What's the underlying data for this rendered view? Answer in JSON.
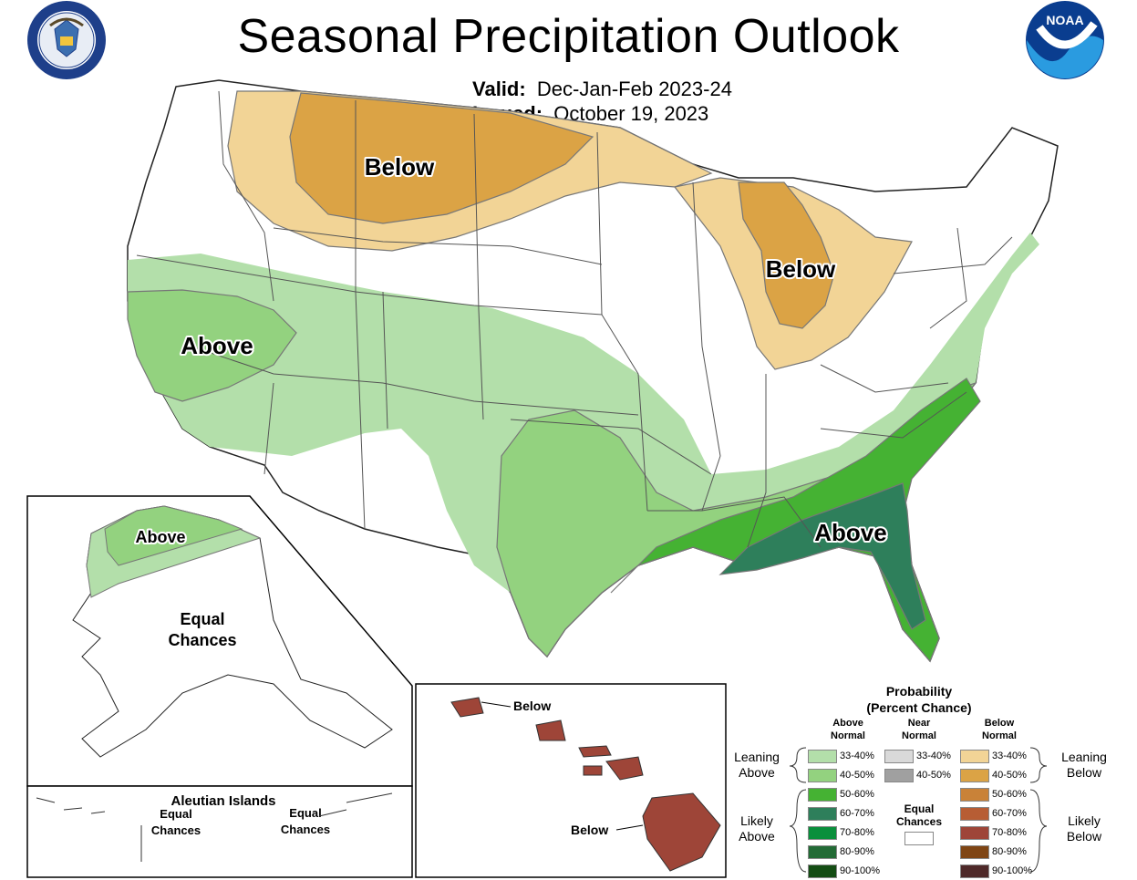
{
  "header": {
    "title": "Seasonal Precipitation Outlook",
    "valid_label": "Valid:",
    "valid_value": "Dec-Jan-Feb 2023-24",
    "issued_label": "Issued:",
    "issued_value": "October 19, 2023"
  },
  "logos": {
    "left_seal_text": "DEPARTMENT OF COMMERCE · UNITED STATES OF AMERICA",
    "right_logo_text": "NOAA"
  },
  "map_labels": {
    "north_below": "Below",
    "great_lakes_below": "Below",
    "west_above": "Above",
    "southeast_above": "Above"
  },
  "alaska": {
    "above": "Above",
    "equal_line1": "Equal",
    "equal_line2": "Chances"
  },
  "aleutian": {
    "title": "Aleutian Islands",
    "left_line1": "Equal",
    "left_line2": "Chances",
    "right_line1": "Equal",
    "right_line2": "Chances"
  },
  "hawaii": {
    "north_label": "Below",
    "south_label": "Below"
  },
  "legend": {
    "title_line1": "Probability",
    "title_line2": "(Percent Chance)",
    "col_above_1": "Above",
    "col_above_2": "Normal",
    "col_near_1": "Near",
    "col_near_2": "Normal",
    "col_below_1": "Below",
    "col_below_2": "Normal",
    "leaning_above_1": "Leaning",
    "leaning_above_2": "Above",
    "likely_above_1": "Likely",
    "likely_above_2": "Above",
    "leaning_below_1": "Leaning",
    "leaning_below_2": "Below",
    "likely_below_1": "Likely",
    "likely_below_2": "Below",
    "equal_1": "Equal",
    "equal_2": "Chances",
    "above_rows": [
      {
        "label": "33-40%",
        "color": "#b3dfaa"
      },
      {
        "label": "40-50%",
        "color": "#93d27f"
      },
      {
        "label": "50-60%",
        "color": "#45b233"
      },
      {
        "label": "60-70%",
        "color": "#2e7f5b"
      },
      {
        "label": "70-80%",
        "color": "#0a8f3c"
      },
      {
        "label": "80-90%",
        "color": "#236b36"
      },
      {
        "label": "90-100%",
        "color": "#144d14"
      }
    ],
    "near_rows": [
      {
        "label": "33-40%",
        "color": "#d9d9d9"
      },
      {
        "label": "40-50%",
        "color": "#a0a0a0"
      }
    ],
    "below_rows": [
      {
        "label": "33-40%",
        "color": "#f2d496"
      },
      {
        "label": "40-50%",
        "color": "#dba345"
      },
      {
        "label": "50-60%",
        "color": "#c98238"
      },
      {
        "label": "60-70%",
        "color": "#b75d34"
      },
      {
        "label": "70-80%",
        "color": "#9e4538"
      },
      {
        "label": "80-90%",
        "color": "#7f4514"
      },
      {
        "label": "90-100%",
        "color": "#4e2929"
      }
    ]
  }
}
